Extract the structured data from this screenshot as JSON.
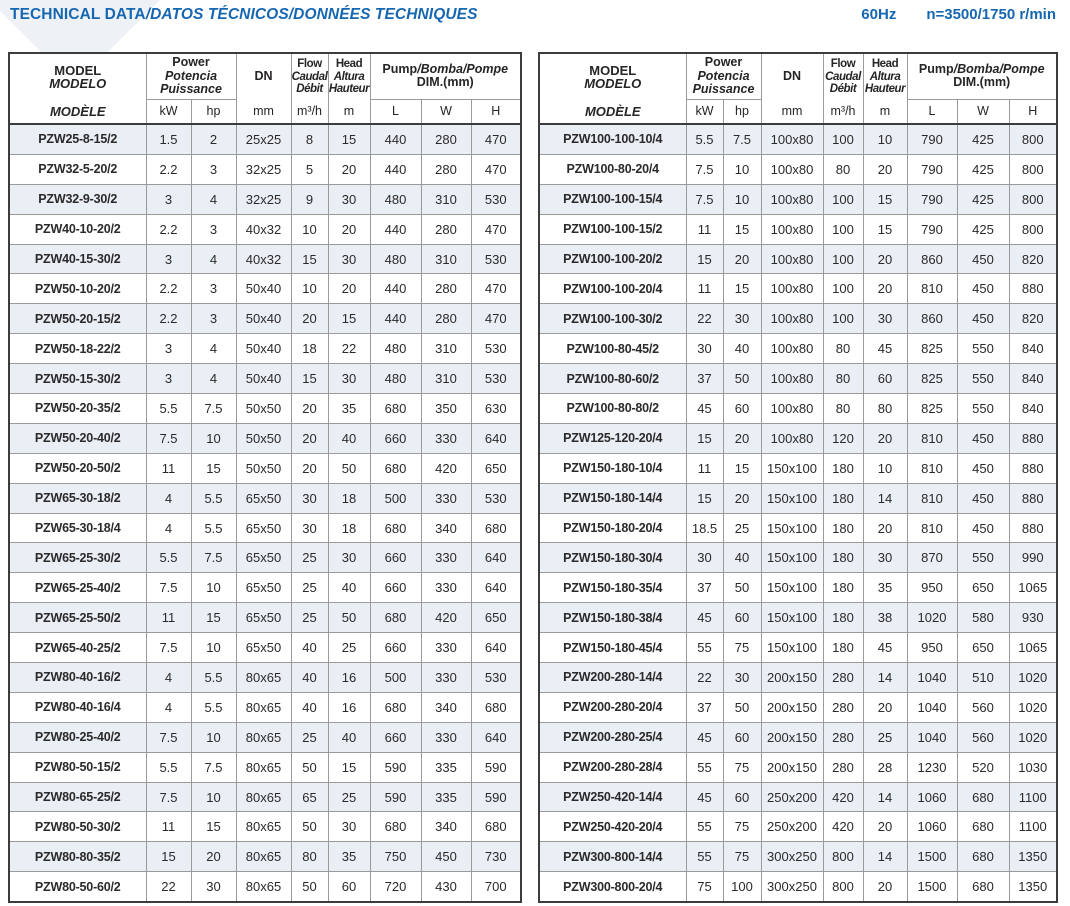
{
  "title": {
    "main": "TECHNICAL DATA",
    "italic": "/DATOS TÉCNICOS/DONNÉES TECHNIQUES"
  },
  "spec": {
    "frequency": "60Hz",
    "speed": "n=3500/1750 r/min"
  },
  "colors": {
    "accent_blue": "#1667b1",
    "row_stripe": "#eaeef5",
    "grid_line": "#9a9a9a",
    "frame_line": "#3c3c3c"
  },
  "header": {
    "model_line1": "MODEL",
    "model_line2": "MODELO",
    "model_line3": "MODÈLE",
    "power_line1": "Power",
    "power_line2": "Potencia",
    "power_line3": "Puissance",
    "unit_kw": "kW",
    "unit_hp": "hp",
    "dn_label": "DN",
    "dn_unit": "mm",
    "flow_line1": "Flow",
    "flow_line2": "Caudal",
    "flow_line3": "Débit",
    "flow_unit": "m³/h",
    "head_line1": "Head",
    "head_line2": "Altura",
    "head_line3": "Hauteur",
    "head_unit": "m",
    "pump_roman": "Pump",
    "pump_italic": "/Bomba/Pompe",
    "pump_line2": "DIM.(mm)",
    "unit_l": "L",
    "unit_w": "W",
    "unit_h": "H"
  },
  "left_table": {
    "rows": [
      [
        "PZW25-8-15/2",
        "1.5",
        "2",
        "25x25",
        "8",
        "15",
        "440",
        "280",
        "470"
      ],
      [
        "PZW32-5-20/2",
        "2.2",
        "3",
        "32x25",
        "5",
        "20",
        "440",
        "280",
        "470"
      ],
      [
        "PZW32-9-30/2",
        "3",
        "4",
        "32x25",
        "9",
        "30",
        "480",
        "310",
        "530"
      ],
      [
        "PZW40-10-20/2",
        "2.2",
        "3",
        "40x32",
        "10",
        "20",
        "440",
        "280",
        "470"
      ],
      [
        "PZW40-15-30/2",
        "3",
        "4",
        "40x32",
        "15",
        "30",
        "480",
        "310",
        "530"
      ],
      [
        "PZW50-10-20/2",
        "2.2",
        "3",
        "50x40",
        "10",
        "20",
        "440",
        "280",
        "470"
      ],
      [
        "PZW50-20-15/2",
        "2.2",
        "3",
        "50x40",
        "20",
        "15",
        "440",
        "280",
        "470"
      ],
      [
        "PZW50-18-22/2",
        "3",
        "4",
        "50x40",
        "18",
        "22",
        "480",
        "310",
        "530"
      ],
      [
        "PZW50-15-30/2",
        "3",
        "4",
        "50x40",
        "15",
        "30",
        "480",
        "310",
        "530"
      ],
      [
        "PZW50-20-35/2",
        "5.5",
        "7.5",
        "50x50",
        "20",
        "35",
        "680",
        "350",
        "630"
      ],
      [
        "PZW50-20-40/2",
        "7.5",
        "10",
        "50x50",
        "20",
        "40",
        "660",
        "330",
        "640"
      ],
      [
        "PZW50-20-50/2",
        "11",
        "15",
        "50x50",
        "20",
        "50",
        "680",
        "420",
        "650"
      ],
      [
        "PZW65-30-18/2",
        "4",
        "5.5",
        "65x50",
        "30",
        "18",
        "500",
        "330",
        "530"
      ],
      [
        "PZW65-30-18/4",
        "4",
        "5.5",
        "65x50",
        "30",
        "18",
        "680",
        "340",
        "680"
      ],
      [
        "PZW65-25-30/2",
        "5.5",
        "7.5",
        "65x50",
        "25",
        "30",
        "660",
        "330",
        "640"
      ],
      [
        "PZW65-25-40/2",
        "7.5",
        "10",
        "65x50",
        "25",
        "40",
        "660",
        "330",
        "640"
      ],
      [
        "PZW65-25-50/2",
        "11",
        "15",
        "65x50",
        "25",
        "50",
        "680",
        "420",
        "650"
      ],
      [
        "PZW65-40-25/2",
        "7.5",
        "10",
        "65x50",
        "40",
        "25",
        "660",
        "330",
        "640"
      ],
      [
        "PZW80-40-16/2",
        "4",
        "5.5",
        "80x65",
        "40",
        "16",
        "500",
        "330",
        "530"
      ],
      [
        "PZW80-40-16/4",
        "4",
        "5.5",
        "80x65",
        "40",
        "16",
        "680",
        "340",
        "680"
      ],
      [
        "PZW80-25-40/2",
        "7.5",
        "10",
        "80x65",
        "25",
        "40",
        "660",
        "330",
        "640"
      ],
      [
        "PZW80-50-15/2",
        "5.5",
        "7.5",
        "80x65",
        "50",
        "15",
        "590",
        "335",
        "590"
      ],
      [
        "PZW80-65-25/2",
        "7.5",
        "10",
        "80x65",
        "65",
        "25",
        "590",
        "335",
        "590"
      ],
      [
        "PZW80-50-30/2",
        "11",
        "15",
        "80x65",
        "50",
        "30",
        "680",
        "340",
        "680"
      ],
      [
        "PZW80-80-35/2",
        "15",
        "20",
        "80x65",
        "80",
        "35",
        "750",
        "450",
        "730"
      ],
      [
        "PZW80-50-60/2",
        "22",
        "30",
        "80x65",
        "50",
        "60",
        "720",
        "430",
        "700"
      ]
    ]
  },
  "right_table": {
    "rows": [
      [
        "PZW100-100-10/4",
        "5.5",
        "7.5",
        "100x80",
        "100",
        "10",
        "790",
        "425",
        "800"
      ],
      [
        "PZW100-80-20/4",
        "7.5",
        "10",
        "100x80",
        "80",
        "20",
        "790",
        "425",
        "800"
      ],
      [
        "PZW100-100-15/4",
        "7.5",
        "10",
        "100x80",
        "100",
        "15",
        "790",
        "425",
        "800"
      ],
      [
        "PZW100-100-15/2",
        "11",
        "15",
        "100x80",
        "100",
        "15",
        "790",
        "425",
        "800"
      ],
      [
        "PZW100-100-20/2",
        "15",
        "20",
        "100x80",
        "100",
        "20",
        "860",
        "450",
        "820"
      ],
      [
        "PZW100-100-20/4",
        "11",
        "15",
        "100x80",
        "100",
        "20",
        "810",
        "450",
        "880"
      ],
      [
        "PZW100-100-30/2",
        "22",
        "30",
        "100x80",
        "100",
        "30",
        "860",
        "450",
        "820"
      ],
      [
        "PZW100-80-45/2",
        "30",
        "40",
        "100x80",
        "80",
        "45",
        "825",
        "550",
        "840"
      ],
      [
        "PZW100-80-60/2",
        "37",
        "50",
        "100x80",
        "80",
        "60",
        "825",
        "550",
        "840"
      ],
      [
        "PZW100-80-80/2",
        "45",
        "60",
        "100x80",
        "80",
        "80",
        "825",
        "550",
        "840"
      ],
      [
        "PZW125-120-20/4",
        "15",
        "20",
        "100x80",
        "120",
        "20",
        "810",
        "450",
        "880"
      ],
      [
        "PZW150-180-10/4",
        "11",
        "15",
        "150x100",
        "180",
        "10",
        "810",
        "450",
        "880"
      ],
      [
        "PZW150-180-14/4",
        "15",
        "20",
        "150x100",
        "180",
        "14",
        "810",
        "450",
        "880"
      ],
      [
        "PZW150-180-20/4",
        "18.5",
        "25",
        "150x100",
        "180",
        "20",
        "810",
        "450",
        "880"
      ],
      [
        "PZW150-180-30/4",
        "30",
        "40",
        "150x100",
        "180",
        "30",
        "870",
        "550",
        "990"
      ],
      [
        "PZW150-180-35/4",
        "37",
        "50",
        "150x100",
        "180",
        "35",
        "950",
        "650",
        "1065"
      ],
      [
        "PZW150-180-38/4",
        "45",
        "60",
        "150x100",
        "180",
        "38",
        "1020",
        "580",
        "930"
      ],
      [
        "PZW150-180-45/4",
        "55",
        "75",
        "150x100",
        "180",
        "45",
        "950",
        "650",
        "1065"
      ],
      [
        "PZW200-280-14/4",
        "22",
        "30",
        "200x150",
        "280",
        "14",
        "1040",
        "510",
        "1020"
      ],
      [
        "PZW200-280-20/4",
        "37",
        "50",
        "200x150",
        "280",
        "20",
        "1040",
        "560",
        "1020"
      ],
      [
        "PZW200-280-25/4",
        "45",
        "60",
        "200x150",
        "280",
        "25",
        "1040",
        "560",
        "1020"
      ],
      [
        "PZW200-280-28/4",
        "55",
        "75",
        "200x150",
        "280",
        "28",
        "1230",
        "520",
        "1030"
      ],
      [
        "PZW250-420-14/4",
        "45",
        "60",
        "250x200",
        "420",
        "14",
        "1060",
        "680",
        "1100"
      ],
      [
        "PZW250-420-20/4",
        "55",
        "75",
        "250x200",
        "420",
        "20",
        "1060",
        "680",
        "1100"
      ],
      [
        "PZW300-800-14/4",
        "55",
        "75",
        "300x250",
        "800",
        "14",
        "1500",
        "680",
        "1350"
      ],
      [
        "PZW300-800-20/4",
        "75",
        "100",
        "300x250",
        "800",
        "20",
        "1500",
        "680",
        "1350"
      ]
    ]
  }
}
